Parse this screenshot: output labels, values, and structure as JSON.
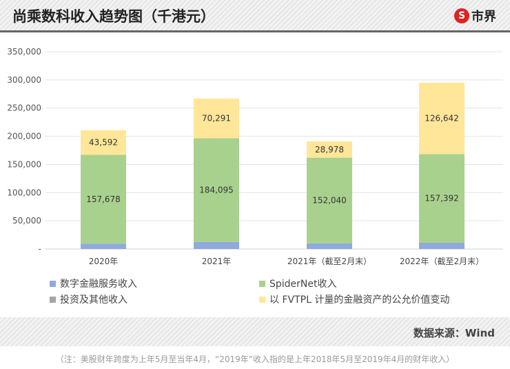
{
  "header": {
    "title": "尚乘数科收入趋势图（千港元）",
    "logo_text": "市界",
    "logo_symbol": "S"
  },
  "chart_data": {
    "type": "bar",
    "stacked": true,
    "title": "尚乘数科收入趋势图（千港元）",
    "categories": [
      "2020年",
      "2021年",
      "2021年（截至2月末）",
      "2022年（截至2月末）"
    ],
    "ylim": [
      0,
      350000
    ],
    "yticks": [
      "-",
      "50,000",
      "100,000",
      "150,000",
      "200,000",
      "250,000",
      "300,000",
      "350,000"
    ],
    "grid": true,
    "legend_placement": "bottom",
    "series": [
      {
        "name": "数字金融服务收入",
        "color": "#8faadc",
        "values": [
          9500,
          12400,
          10000,
          11000
        ],
        "labels": [
          null,
          null,
          null,
          null
        ]
      },
      {
        "name": "投资及其他收入",
        "color": "#a5a5a5",
        "values": [
          0,
          0,
          0,
          0
        ],
        "labels": [
          null,
          null,
          null,
          null
        ]
      },
      {
        "name": "SpiderNet收入",
        "color": "#a9d18e",
        "values": [
          157678,
          184095,
          152040,
          157392
        ],
        "labels": [
          "157,678",
          "184,095",
          "152,040",
          "157,392"
        ]
      },
      {
        "name": "以 FVTPL 计量的金融资产的公允价值变动",
        "color": "#ffe699",
        "values": [
          43592,
          70291,
          28978,
          126642
        ],
        "labels": [
          "43,592",
          "70,291",
          "28,978",
          "126,642"
        ]
      }
    ]
  },
  "legend": [
    "数字金融服务收入",
    "SpiderNet收入",
    "投资及其他收入",
    "以 FVTPL 计量的金融资产的公允价值变动"
  ],
  "footer": {
    "source": "数据来源：Wind"
  },
  "note": "（注：美股财年跨度为上年5月至当年4月，“2019年”收入指的是上年2018年5月至2019年4月的财年收入）"
}
